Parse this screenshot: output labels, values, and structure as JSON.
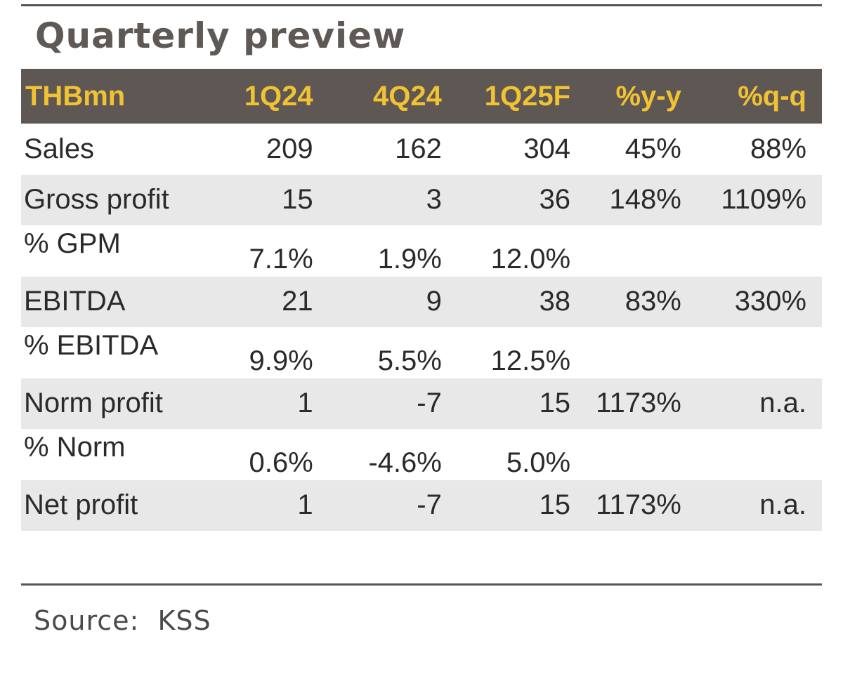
{
  "title": "Quarterly preview",
  "colors": {
    "header_bg": "#5e5753",
    "header_text": "#f1c232",
    "row_shade": "#e8e8e8",
    "rule": "#5b5551"
  },
  "table": {
    "headers": [
      "THBmn",
      "1Q24",
      "4Q24",
      "1Q25F",
      "%y-y",
      "%q-q"
    ],
    "rows": [
      [
        "Sales",
        "209",
        "162",
        "304",
        "45%",
        "88%"
      ],
      [
        "Gross profit",
        "15",
        "3",
        "36",
        "148%",
        "1109%"
      ],
      [
        "% GPM",
        "7.1%",
        "1.9%",
        "12.0%",
        "",
        ""
      ],
      [
        "EBITDA",
        "21",
        "9",
        "38",
        "83%",
        "330%"
      ],
      [
        "% EBITDA",
        "9.9%",
        "5.5%",
        "12.5%",
        "",
        ""
      ],
      [
        "Norm profit",
        "1",
        "-7",
        "15",
        "1173%",
        "n.a."
      ],
      [
        "% Norm",
        "0.6%",
        "-4.6%",
        "5.0%",
        "",
        ""
      ],
      [
        "Net profit",
        "1",
        "-7",
        "15",
        "1173%",
        "n.a."
      ]
    ]
  },
  "source": "Source:  KSS"
}
